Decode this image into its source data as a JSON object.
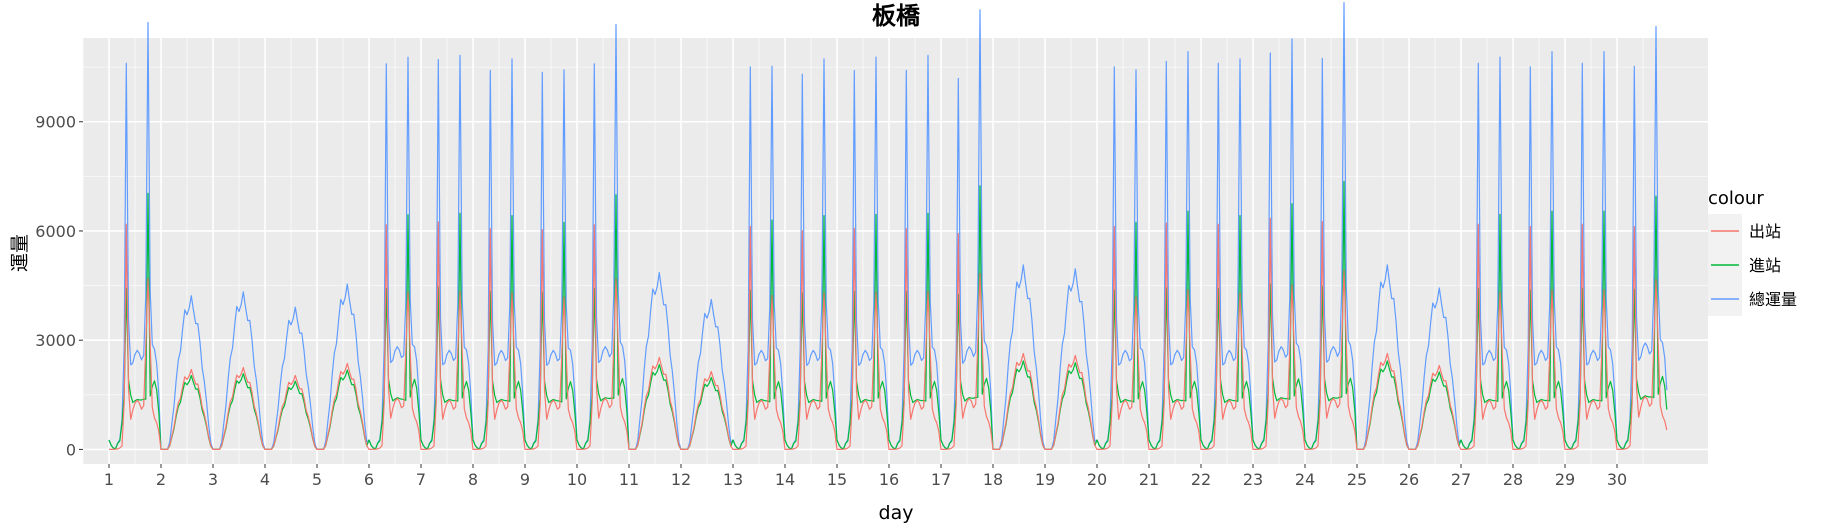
{
  "chart_data": {
    "type": "line",
    "title": "板橋",
    "xlabel": "day",
    "ylabel": "運量",
    "xlim": [
      0.5,
      31.75
    ],
    "ylim": [
      -400,
      11300
    ],
    "x_ticks": [
      1,
      2,
      3,
      4,
      5,
      6,
      7,
      8,
      9,
      10,
      11,
      12,
      13,
      14,
      15,
      16,
      17,
      18,
      19,
      20,
      21,
      22,
      23,
      24,
      25,
      26,
      27,
      28,
      29,
      30
    ],
    "x_tick_labels": [
      "1",
      "2",
      "3",
      "4",
      "5",
      "6",
      "7",
      "8",
      "9",
      "10",
      "11",
      "12",
      "13",
      "14",
      "15",
      "16",
      "17",
      "18",
      "19",
      "20",
      "21",
      "22",
      "23",
      "24",
      "25",
      "26",
      "27",
      "28",
      "29",
      "30"
    ],
    "y_ticks": [
      0,
      3000,
      6000,
      9000
    ],
    "y_tick_labels": [
      "0",
      "3000",
      "6000",
      "9000"
    ],
    "grid": true,
    "legend": {
      "title": "colour",
      "placement": "right"
    },
    "series": [
      {
        "name": "出站",
        "color": "#F8766D",
        "values": []
      },
      {
        "name": "進站",
        "color": "#00BA38",
        "values": []
      },
      {
        "name": "總運量",
        "color": "#619CFF",
        "values": []
      }
    ],
    "hours_per_day": 24,
    "day_profiles": [
      {
        "day": 1,
        "kind": "weekday",
        "am_peak_total": 9750,
        "pm_peak_total": 10500,
        "midday_total": 2700
      },
      {
        "day": 2,
        "kind": "weekend",
        "peak_total": 4000
      },
      {
        "day": 3,
        "kind": "weekend",
        "peak_total": 4100
      },
      {
        "day": 4,
        "kind": "weekend",
        "peak_total": 3700
      },
      {
        "day": 5,
        "kind": "weekend",
        "peak_total": 4300
      },
      {
        "day": 6,
        "kind": "weekday",
        "am_peak_total": 9700,
        "pm_peak_total": 9500,
        "midday_total": 2800
      },
      {
        "day": 7,
        "kind": "weekday",
        "am_peak_total": 9850,
        "pm_peak_total": 9600,
        "midday_total": 2700
      },
      {
        "day": 8,
        "kind": "weekday",
        "am_peak_total": 9550,
        "pm_peak_total": 9500,
        "midday_total": 2700
      },
      {
        "day": 9,
        "kind": "weekday",
        "am_peak_total": 9500,
        "pm_peak_total": 9200,
        "midday_total": 2700
      },
      {
        "day": 10,
        "kind": "weekday",
        "am_peak_total": 9700,
        "pm_peak_total": 10400,
        "midday_total": 2800
      },
      {
        "day": 11,
        "kind": "weekend",
        "peak_total": 4600
      },
      {
        "day": 12,
        "kind": "weekend",
        "peak_total": 3900
      },
      {
        "day": 13,
        "kind": "weekday",
        "am_peak_total": 9650,
        "pm_peak_total": 9300,
        "midday_total": 2700
      },
      {
        "day": 14,
        "kind": "weekday",
        "am_peak_total": 9450,
        "pm_peak_total": 9500,
        "midday_total": 2700
      },
      {
        "day": 15,
        "kind": "weekday",
        "am_peak_total": 9550,
        "pm_peak_total": 9550,
        "midday_total": 2700
      },
      {
        "day": 16,
        "kind": "weekday",
        "am_peak_total": 9550,
        "pm_peak_total": 9600,
        "midday_total": 2700
      },
      {
        "day": 17,
        "kind": "weekday",
        "am_peak_total": 9300,
        "pm_peak_total": 10800,
        "midday_total": 2800
      },
      {
        "day": 18,
        "kind": "weekend",
        "peak_total": 4800
      },
      {
        "day": 19,
        "kind": "weekend",
        "peak_total": 4700
      },
      {
        "day": 20,
        "kind": "weekday",
        "am_peak_total": 9650,
        "pm_peak_total": 9200,
        "midday_total": 2700
      },
      {
        "day": 21,
        "kind": "weekday",
        "am_peak_total": 9800,
        "pm_peak_total": 9700,
        "midday_total": 2700
      },
      {
        "day": 22,
        "kind": "weekday",
        "am_peak_total": 9750,
        "pm_peak_total": 9500,
        "midday_total": 2700
      },
      {
        "day": 23,
        "kind": "weekday",
        "am_peak_total": 10000,
        "pm_peak_total": 10000,
        "midday_total": 2800
      },
      {
        "day": 24,
        "kind": "weekday",
        "am_peak_total": 9850,
        "pm_peak_total": 11000,
        "midday_total": 2800
      },
      {
        "day": 25,
        "kind": "weekend",
        "peak_total": 4800
      },
      {
        "day": 26,
        "kind": "weekend",
        "peak_total": 4200
      },
      {
        "day": 27,
        "kind": "weekday",
        "am_peak_total": 9750,
        "pm_peak_total": 9550,
        "midday_total": 2700
      },
      {
        "day": 28,
        "kind": "weekday",
        "am_peak_total": 9650,
        "pm_peak_total": 9700,
        "midday_total": 2700
      },
      {
        "day": 29,
        "kind": "weekday",
        "am_peak_total": 9750,
        "pm_peak_total": 9700,
        "midday_total": 2700
      },
      {
        "day": 30,
        "kind": "weekday",
        "am_peak_total": 9600,
        "pm_peak_total": 10300,
        "midday_total": 2900
      }
    ]
  }
}
